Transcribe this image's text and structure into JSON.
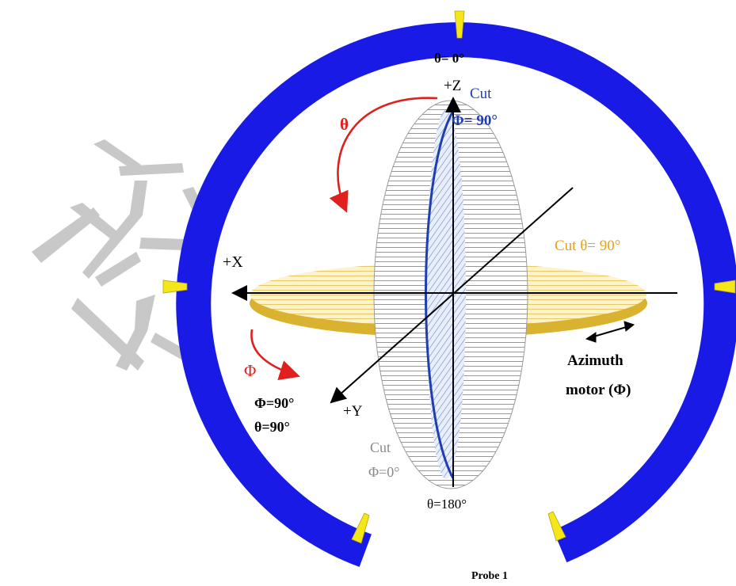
{
  "colors": {
    "ring": "#1a1ae6",
    "marker": "#f5e61a",
    "cut_z_blue": "#1f3fb0",
    "red_arrow": "#e0201e",
    "orange_label": "#e6a21a",
    "disk_fill": "#f7e7a6",
    "disk_edge": "#d9b230",
    "watermark": "#c8c8c8"
  },
  "labels": {
    "theta_zero": "θ= 0°",
    "plus_z": "+Z",
    "cut_top": "Cut",
    "phi_90_top": "Φ= 90°",
    "theta_red": "θ",
    "plus_x": "+X",
    "cut_theta_90": "Cut  θ= 90°",
    "phi_red": "Φ",
    "azimuth_line1": "Azimuth",
    "azimuth_line2": "motor (Φ)",
    "phi_90_left": "Φ=90°",
    "theta_90_left": "θ=90°",
    "plus_y": "+Y",
    "cut_bottom": "Cut",
    "phi_0": "Φ=0°",
    "theta_180": "θ=180°",
    "probe": "Probe 1"
  },
  "icons": [
    "theta-rotation-arrow-icon",
    "phi-rotation-arrow-icon",
    "azimuth-double-arrow-icon",
    "watermark-glyph-icon"
  ]
}
